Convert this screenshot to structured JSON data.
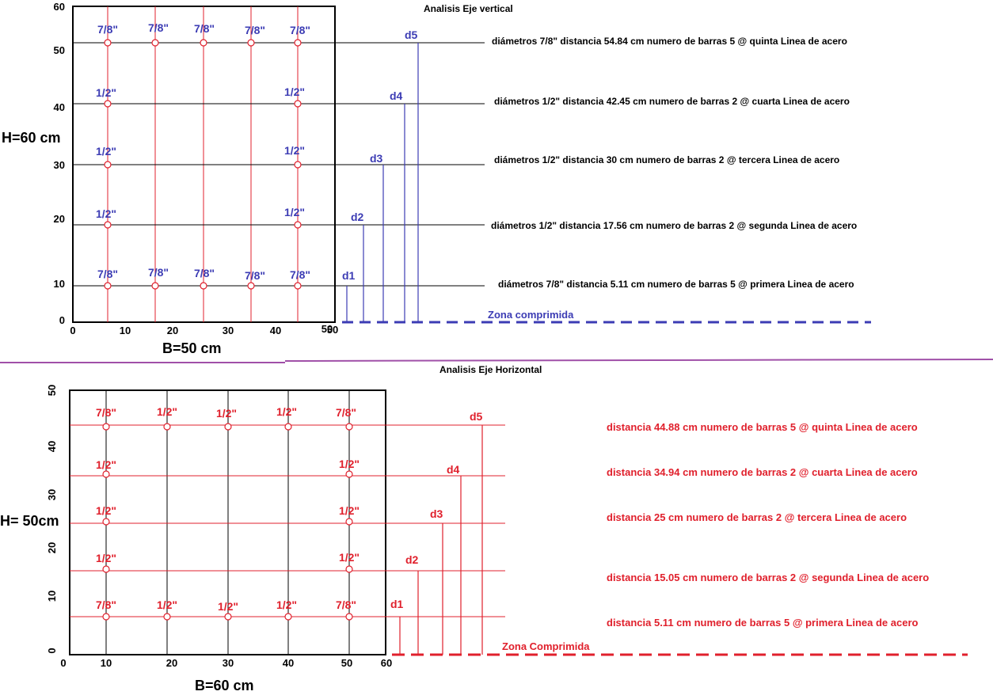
{
  "colors": {
    "blue": "#3c3cb4",
    "red": "#e0202c",
    "black": "#000000",
    "purple": "#a050a8"
  },
  "top": {
    "title": "Analisis Eje vertical",
    "h_label": "H=60 cm",
    "b_label": "B=50 cm",
    "y_ticks": [
      "0",
      "10",
      "20",
      "30",
      "40",
      "50",
      "60"
    ],
    "x_ticks": [
      "0",
      "10",
      "20",
      "30",
      "40",
      "50",
      "50"
    ],
    "zone_label": "Zona comprimida",
    "rows": [
      {
        "d": "d5",
        "bars": [
          "7/8\"",
          "7/8\"",
          "7/8\"",
          "7/8\"",
          "7/8\""
        ],
        "desc": "diámetros 7/8\" distancia 54.84 cm numero de barras 5 @ quinta Linea de acero"
      },
      {
        "d": "d4",
        "bars": [
          "1/2\"",
          "1/2\""
        ],
        "desc": "diámetros 1/2\" distancia 42.45 cm numero de barras 2 @ cuarta Linea de acero"
      },
      {
        "d": "d3",
        "bars": [
          "1/2\"",
          "1/2\""
        ],
        "desc": "diámetros 1/2\" distancia 30 cm numero de barras 2 @ tercera Linea de acero"
      },
      {
        "d": "d2",
        "bars": [
          "1/2\"",
          "1/2\""
        ],
        "desc": "diámetros 1/2\" distancia 17.56 cm numero de barras 2 @ segunda Linea de acero"
      },
      {
        "d": "d1",
        "bars": [
          "7/8\"",
          "7/8\"",
          "7/8\"",
          "7/8\"",
          "7/8\""
        ],
        "desc": "diámetros 7/8\" distancia 5.11 cm numero de barras 5 @ primera Linea de acero"
      }
    ]
  },
  "bottom": {
    "title": "Analisis Eje Horizontal",
    "h_label": "H= 50cm",
    "b_label": "B=60 cm",
    "y_ticks": [
      "0",
      "10",
      "20",
      "30",
      "40",
      "50"
    ],
    "x_ticks": [
      "0",
      "10",
      "20",
      "30",
      "40",
      "50",
      "60"
    ],
    "zone_label": "Zona Comprimida",
    "rows": [
      {
        "d": "d5",
        "bars": [
          "7/8\"",
          "1/2\"",
          "1/2\"",
          "1/2\"",
          "7/8\""
        ],
        "desc": "distancia 44.88 cm numero de barras 5 @ quinta Linea de acero"
      },
      {
        "d": "d4",
        "bars": [
          "1/2\"",
          "1/2\""
        ],
        "desc": "distancia 34.94 cm numero de barras 2 @ cuarta Linea de acero"
      },
      {
        "d": "d3",
        "bars": [
          "1/2\"",
          "1/2\""
        ],
        "desc": "distancia 25 cm numero de barras 2 @ tercera Linea de acero"
      },
      {
        "d": "d2",
        "bars": [
          "1/2\"",
          "1/2\""
        ],
        "desc": "distancia 15.05 cm numero de barras 2 @ segunda Linea de acero"
      },
      {
        "d": "d1",
        "bars": [
          "7/8\"",
          "1/2\"",
          "1/2\"",
          "1/2\"",
          "7/8\""
        ],
        "desc": "distancia 5.11 cm numero de barras 5 @ primera Linea de acero"
      }
    ]
  }
}
